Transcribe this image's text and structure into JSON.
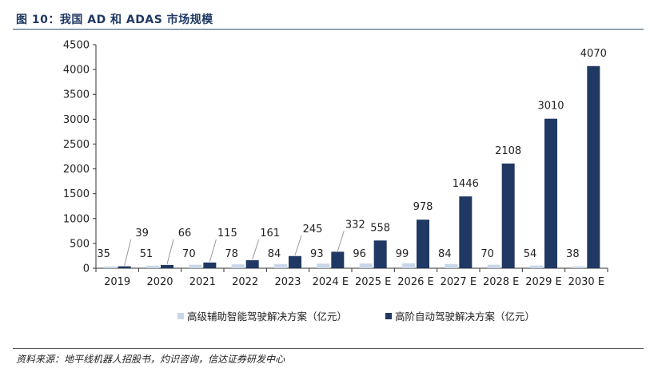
{
  "figure": {
    "title": "图 10：我国 AD 和 ADAS 市场规模",
    "source": "资料来源：地平线机器人招股书，灼识咨询，信达证券研发中心"
  },
  "chart_data": {
    "type": "bar",
    "title": "",
    "xlabel": "",
    "ylabel": "",
    "categories": [
      "2019",
      "2020",
      "2021",
      "2022",
      "2023",
      "2024 E",
      "2025 E",
      "2026 E",
      "2027 E",
      "2028 E",
      "2029 E",
      "2030 E"
    ],
    "ylim": [
      0,
      4500
    ],
    "yticks": [
      0,
      500,
      1000,
      1500,
      2000,
      2500,
      3000,
      3500,
      4000,
      4500
    ],
    "grid": false,
    "legend_position": "bottom",
    "series": [
      {
        "name": "高级辅助智能驾驶解决方案（亿元）",
        "color": "#c9d7e8",
        "values": [
          35,
          51,
          70,
          78,
          84,
          93,
          96,
          99,
          84,
          70,
          54,
          38
        ]
      },
      {
        "name": "高阶自动驾驶解决方案（亿元）",
        "color": "#1f3864",
        "values": [
          39,
          66,
          115,
          161,
          245,
          332,
          558,
          978,
          1446,
          2108,
          3010,
          4070
        ]
      }
    ]
  }
}
